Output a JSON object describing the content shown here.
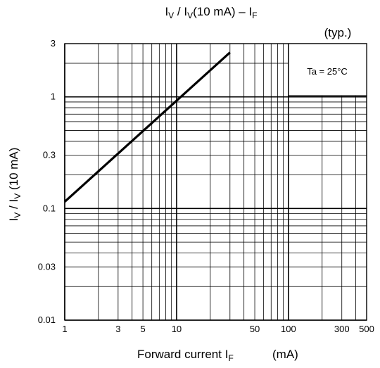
{
  "chart_data": {
    "type": "line",
    "title": {
      "main": "I",
      "sub1": "V",
      "mid": " / I",
      "sub2": "V",
      "rest": "(10 mA) – I",
      "sub3": "F"
    },
    "note": "(typ.)",
    "condition": "Ta = 25°C",
    "xlabel": {
      "text": "Forward current  I",
      "sub": "F",
      "unit": "(mA)"
    },
    "ylabel": {
      "main": "I",
      "sub1": "V",
      "mid": " / I",
      "sub2": "V",
      "rest": " (10 mA)"
    },
    "x_scale": "log",
    "y_scale": "log",
    "xlim": [
      1,
      500
    ],
    "ylim": [
      0.01,
      3
    ],
    "x_ticks": [
      {
        "v": 1,
        "label": "1"
      },
      {
        "v": 3,
        "label": "3"
      },
      {
        "v": 5,
        "label": "5"
      },
      {
        "v": 10,
        "label": "10"
      },
      {
        "v": 50,
        "label": "50"
      },
      {
        "v": 100,
        "label": "100"
      },
      {
        "v": 300,
        "label": "300"
      },
      {
        "v": 500,
        "label": "500"
      }
    ],
    "y_ticks": [
      {
        "v": 0.01,
        "label": "0.01"
      },
      {
        "v": 0.03,
        "label": "0.03"
      },
      {
        "v": 0.1,
        "label": "0.1"
      },
      {
        "v": 0.3,
        "label": "0.3"
      },
      {
        "v": 1,
        "label": "1"
      },
      {
        "v": 3,
        "label": "3"
      }
    ],
    "grid": true,
    "series": [
      {
        "x": [
          1,
          30
        ],
        "y": [
          0.115,
          2.5
        ]
      }
    ]
  }
}
